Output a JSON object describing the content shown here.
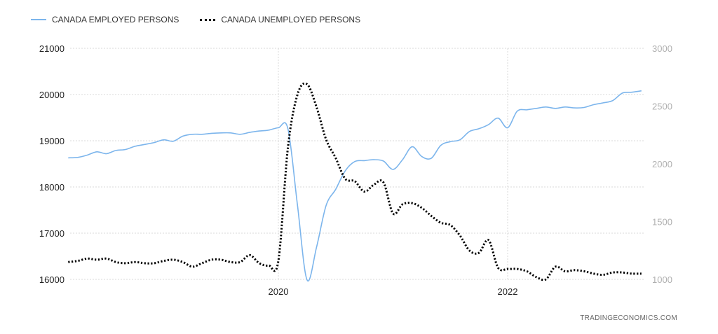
{
  "legend": {
    "employed_label": "CANADA EMPLOYED PERSONS",
    "unemployed_label": "CANADA UNEMPLOYED PERSONS"
  },
  "credit": "TRADINGECONOMICS.COM",
  "colors": {
    "employed": "#7cb5ec",
    "unemployed": "#000000",
    "grid": "#d9d9d9"
  },
  "chart_data": {
    "type": "line",
    "x_label": "",
    "x_ticks": [
      "2020",
      "2022"
    ],
    "left_axis": {
      "ticks": [
        16000,
        17000,
        18000,
        19000,
        20000,
        21000
      ],
      "range": [
        16000,
        21000
      ]
    },
    "right_axis": {
      "ticks": [
        1000,
        1500,
        2000,
        2500,
        3000
      ],
      "range": [
        1000,
        3000
      ]
    },
    "grid": true,
    "legend_position": "top-left",
    "series": [
      {
        "name": "CANADA EMPLOYED PERSONS",
        "axis": "left",
        "x": [
          "2018-03",
          "2018-04",
          "2018-05",
          "2018-06",
          "2018-07",
          "2018-08",
          "2018-09",
          "2018-10",
          "2018-11",
          "2018-12",
          "2019-01",
          "2019-02",
          "2019-03",
          "2019-04",
          "2019-05",
          "2019-06",
          "2019-07",
          "2019-08",
          "2019-09",
          "2019-10",
          "2019-11",
          "2019-12",
          "2020-01",
          "2020-02",
          "2020-03",
          "2020-04",
          "2020-05",
          "2020-06",
          "2020-07",
          "2020-08",
          "2020-09",
          "2020-10",
          "2020-11",
          "2020-12",
          "2021-01",
          "2021-02",
          "2021-03",
          "2021-04",
          "2021-05",
          "2021-06",
          "2021-07",
          "2021-08",
          "2021-09",
          "2021-10",
          "2021-11",
          "2021-12",
          "2022-01",
          "2022-02",
          "2022-03",
          "2022-04",
          "2022-05",
          "2022-06",
          "2022-07",
          "2022-08",
          "2022-09",
          "2022-10",
          "2022-11",
          "2022-12",
          "2023-01",
          "2023-02",
          "2023-03"
        ],
        "values": [
          18630,
          18640,
          18690,
          18760,
          18720,
          18790,
          18810,
          18880,
          18920,
          18960,
          19020,
          18990,
          19100,
          19140,
          19140,
          19160,
          19170,
          19170,
          19140,
          19180,
          19210,
          19230,
          19280,
          19260,
          17600,
          15990,
          16700,
          17600,
          17950,
          18350,
          18550,
          18570,
          18590,
          18560,
          18380,
          18590,
          18870,
          18660,
          18620,
          18900,
          18980,
          19020,
          19200,
          19260,
          19350,
          19490,
          19280,
          19640,
          19670,
          19700,
          19730,
          19700,
          19730,
          19710,
          19720,
          19780,
          19820,
          19870,
          20030,
          20050,
          20080
        ]
      },
      {
        "name": "CANADA UNEMPLOYED PERSONS",
        "axis": "right",
        "x": [
          "2018-03",
          "2018-04",
          "2018-05",
          "2018-06",
          "2018-07",
          "2018-08",
          "2018-09",
          "2018-10",
          "2018-11",
          "2018-12",
          "2019-01",
          "2019-02",
          "2019-03",
          "2019-04",
          "2019-05",
          "2019-06",
          "2019-07",
          "2019-08",
          "2019-09",
          "2019-10",
          "2019-11",
          "2019-12",
          "2020-01",
          "2020-02",
          "2020-03",
          "2020-04",
          "2020-05",
          "2020-06",
          "2020-07",
          "2020-08",
          "2020-09",
          "2020-10",
          "2020-11",
          "2020-12",
          "2021-01",
          "2021-02",
          "2021-03",
          "2021-04",
          "2021-05",
          "2021-06",
          "2021-07",
          "2021-08",
          "2021-09",
          "2021-10",
          "2021-11",
          "2021-12",
          "2022-01",
          "2022-02",
          "2022-03",
          "2022-04",
          "2022-05",
          "2022-06",
          "2022-07",
          "2022-08",
          "2022-09",
          "2022-10",
          "2022-11",
          "2022-12",
          "2023-01",
          "2023-02",
          "2023-03"
        ],
        "values": [
          1150,
          1160,
          1180,
          1170,
          1180,
          1150,
          1140,
          1150,
          1140,
          1140,
          1160,
          1170,
          1150,
          1110,
          1140,
          1170,
          1170,
          1150,
          1150,
          1210,
          1140,
          1120,
          1160,
          2140,
          2600,
          2690,
          2490,
          2210,
          2050,
          1870,
          1850,
          1760,
          1820,
          1840,
          1570,
          1650,
          1660,
          1620,
          1550,
          1490,
          1470,
          1380,
          1250,
          1230,
          1340,
          1100,
          1090,
          1090,
          1070,
          1020,
          1000,
          1110,
          1070,
          1080,
          1070,
          1050,
          1040,
          1060,
          1060,
          1050,
          1050
        ]
      }
    ]
  }
}
